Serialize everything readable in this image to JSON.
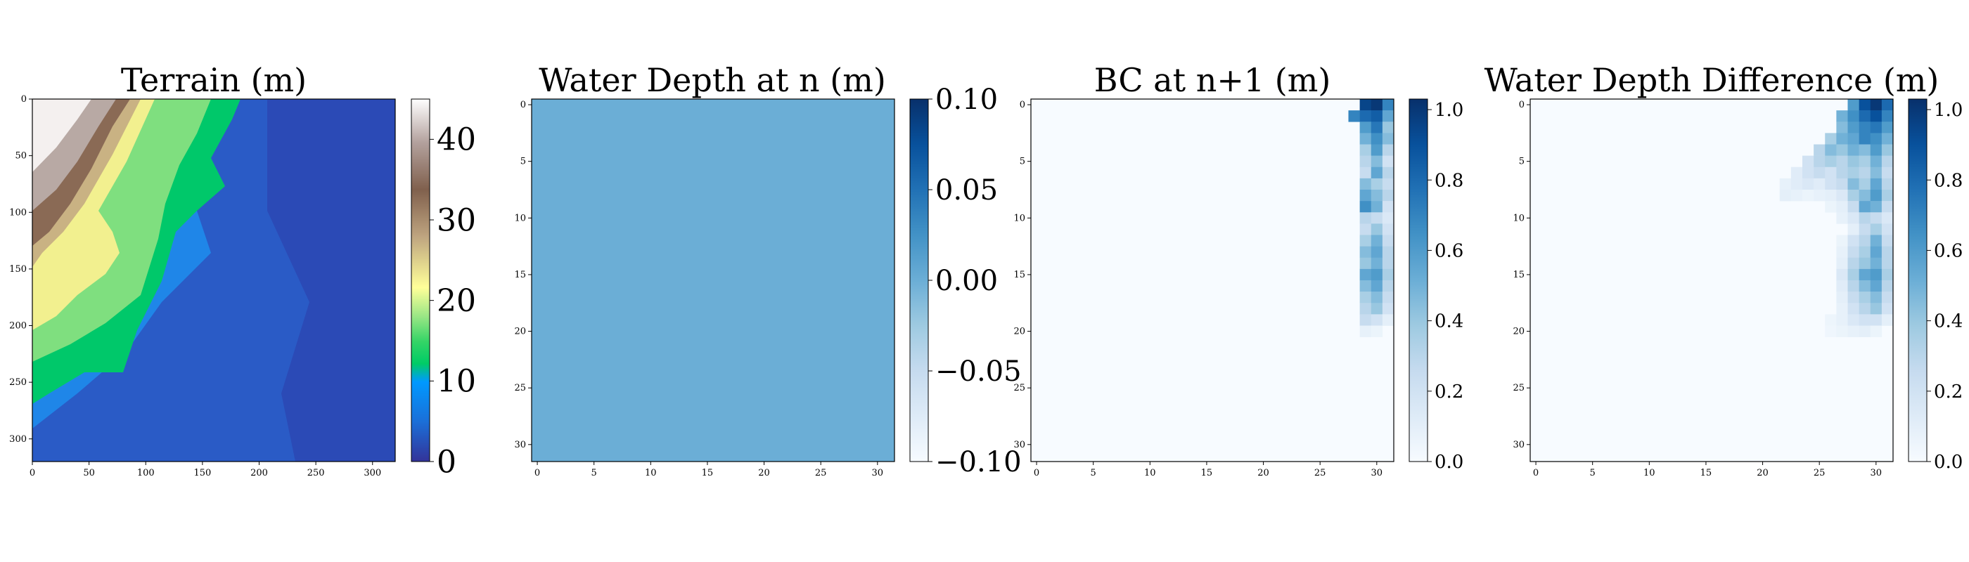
{
  "chart_data": [
    {
      "type": "heatmap",
      "title": "Terrain (m)",
      "colormap": "terrain",
      "grid": "off",
      "xlim": [
        0,
        320
      ],
      "ylim": [
        320,
        0
      ],
      "x_ticks": [
        "0",
        "50",
        "100",
        "150",
        "200",
        "250",
        "300"
      ],
      "y_ticks": [
        "0",
        "50",
        "100",
        "150",
        "200",
        "250",
        "300"
      ],
      "colorbar_ticks": [
        "0",
        "10",
        "20",
        "30",
        "40"
      ],
      "colorbar_range": [
        0,
        45
      ],
      "description_values": {
        "ridge_peak_value": 45,
        "low_plain_value": 2
      }
    },
    {
      "type": "heatmap",
      "title": "Water Depth at n (m)",
      "colormap": "Blues",
      "grid": "off",
      "xlim": [
        0,
        31
      ],
      "ylim": [
        31,
        0
      ],
      "x_ticks": [
        "0",
        "5",
        "10",
        "15",
        "20",
        "25",
        "30"
      ],
      "y_ticks": [
        "0",
        "5",
        "10",
        "15",
        "20",
        "25",
        "30"
      ],
      "colorbar_ticks": [
        "−0.10",
        "−0.05",
        "0.00",
        "0.05",
        "0.10"
      ],
      "colorbar_range": [
        -0.1,
        0.1
      ],
      "uniform_value": 0.0
    },
    {
      "type": "heatmap",
      "title": "BC at n+1 (m)",
      "colormap": "Blues",
      "grid": "off",
      "xlim": [
        0,
        31
      ],
      "ylim": [
        31,
        0
      ],
      "x_ticks": [
        "0",
        "5",
        "10",
        "15",
        "20",
        "25",
        "30"
      ],
      "y_ticks": [
        "0",
        "5",
        "10",
        "15",
        "20",
        "25",
        "30"
      ],
      "colorbar_ticks": [
        "0.0",
        "0.2",
        "0.4",
        "0.6",
        "0.8",
        "1.0"
      ],
      "colorbar_range": [
        0,
        1.03
      ],
      "nonzero_cells": [
        [
          0,
          29,
          0.95
        ],
        [
          0,
          30,
          1.0
        ],
        [
          0,
          31,
          0.7
        ],
        [
          1,
          28,
          0.7
        ],
        [
          1,
          29,
          0.8
        ],
        [
          1,
          30,
          0.85
        ],
        [
          1,
          31,
          0.55
        ],
        [
          2,
          29,
          0.6
        ],
        [
          2,
          30,
          0.75
        ],
        [
          2,
          31,
          0.4
        ],
        [
          3,
          29,
          0.5
        ],
        [
          3,
          30,
          0.65
        ],
        [
          3,
          31,
          0.45
        ],
        [
          4,
          29,
          0.35
        ],
        [
          4,
          30,
          0.6
        ],
        [
          4,
          31,
          0.3
        ],
        [
          5,
          29,
          0.3
        ],
        [
          5,
          30,
          0.45
        ],
        [
          5,
          31,
          0.2
        ],
        [
          6,
          29,
          0.25
        ],
        [
          6,
          30,
          0.55
        ],
        [
          6,
          31,
          0.3
        ],
        [
          7,
          29,
          0.45
        ],
        [
          7,
          30,
          0.35
        ],
        [
          7,
          31,
          0.25
        ],
        [
          8,
          29,
          0.55
        ],
        [
          8,
          30,
          0.45
        ],
        [
          8,
          31,
          0.3
        ],
        [
          9,
          29,
          0.65
        ],
        [
          9,
          30,
          0.5
        ],
        [
          9,
          31,
          0.2
        ],
        [
          10,
          29,
          0.3
        ],
        [
          10,
          30,
          0.25
        ],
        [
          10,
          31,
          0.15
        ],
        [
          11,
          29,
          0.25
        ],
        [
          11,
          30,
          0.4
        ],
        [
          11,
          31,
          0.2
        ],
        [
          12,
          29,
          0.35
        ],
        [
          12,
          30,
          0.5
        ],
        [
          12,
          31,
          0.25
        ],
        [
          13,
          29,
          0.45
        ],
        [
          13,
          30,
          0.55
        ],
        [
          13,
          31,
          0.3
        ],
        [
          14,
          29,
          0.4
        ],
        [
          14,
          30,
          0.5
        ],
        [
          14,
          31,
          0.3
        ],
        [
          15,
          29,
          0.55
        ],
        [
          15,
          30,
          0.6
        ],
        [
          15,
          31,
          0.35
        ],
        [
          16,
          29,
          0.45
        ],
        [
          16,
          30,
          0.55
        ],
        [
          16,
          31,
          0.3
        ],
        [
          17,
          29,
          0.35
        ],
        [
          17,
          30,
          0.45
        ],
        [
          17,
          31,
          0.25
        ],
        [
          18,
          29,
          0.3
        ],
        [
          18,
          30,
          0.4
        ],
        [
          18,
          31,
          0.2
        ],
        [
          19,
          29,
          0.25
        ],
        [
          19,
          30,
          0.2
        ],
        [
          19,
          31,
          0.1
        ],
        [
          20,
          29,
          0.08
        ],
        [
          20,
          30,
          0.06
        ]
      ]
    },
    {
      "type": "heatmap",
      "title": "Water Depth Difference (m)",
      "colormap": "Blues",
      "grid": "off",
      "xlim": [
        0,
        31
      ],
      "ylim": [
        31,
        0
      ],
      "x_ticks": [
        "0",
        "5",
        "10",
        "15",
        "20",
        "25",
        "30"
      ],
      "y_ticks": [
        "0",
        "5",
        "10",
        "15",
        "20",
        "25",
        "30"
      ],
      "colorbar_ticks": [
        "0.0",
        "0.2",
        "0.4",
        "0.6",
        "0.8",
        "1.0"
      ],
      "colorbar_range": [
        0,
        1.03
      ],
      "nonzero_cells": [
        [
          0,
          28,
          0.6
        ],
        [
          0,
          29,
          0.9
        ],
        [
          0,
          30,
          1.0
        ],
        [
          0,
          31,
          0.8
        ],
        [
          1,
          27,
          0.5
        ],
        [
          1,
          28,
          0.65
        ],
        [
          1,
          29,
          0.8
        ],
        [
          1,
          30,
          0.9
        ],
        [
          1,
          31,
          0.7
        ],
        [
          2,
          27,
          0.45
        ],
        [
          2,
          28,
          0.6
        ],
        [
          2,
          29,
          0.7
        ],
        [
          2,
          30,
          0.75
        ],
        [
          2,
          31,
          0.6
        ],
        [
          3,
          26,
          0.35
        ],
        [
          3,
          27,
          0.5
        ],
        [
          3,
          28,
          0.55
        ],
        [
          3,
          29,
          0.7
        ],
        [
          3,
          30,
          0.65
        ],
        [
          3,
          31,
          0.5
        ],
        [
          4,
          25,
          0.3
        ],
        [
          4,
          26,
          0.45
        ],
        [
          4,
          27,
          0.4
        ],
        [
          4,
          28,
          0.5
        ],
        [
          4,
          29,
          0.45
        ],
        [
          4,
          30,
          0.6
        ],
        [
          4,
          31,
          0.4
        ],
        [
          5,
          24,
          0.2
        ],
        [
          5,
          25,
          0.3
        ],
        [
          5,
          26,
          0.35
        ],
        [
          5,
          27,
          0.3
        ],
        [
          5,
          28,
          0.4
        ],
        [
          5,
          29,
          0.35
        ],
        [
          5,
          30,
          0.5
        ],
        [
          5,
          31,
          0.3
        ],
        [
          6,
          23,
          0.12
        ],
        [
          6,
          24,
          0.2
        ],
        [
          6,
          25,
          0.25
        ],
        [
          6,
          26,
          0.2
        ],
        [
          6,
          27,
          0.3
        ],
        [
          6,
          28,
          0.35
        ],
        [
          6,
          29,
          0.3
        ],
        [
          6,
          30,
          0.45
        ],
        [
          6,
          31,
          0.25
        ],
        [
          7,
          22,
          0.08
        ],
        [
          7,
          23,
          0.12
        ],
        [
          7,
          24,
          0.15
        ],
        [
          7,
          25,
          0.12
        ],
        [
          7,
          26,
          0.2
        ],
        [
          7,
          27,
          0.25
        ],
        [
          7,
          28,
          0.45
        ],
        [
          7,
          29,
          0.35
        ],
        [
          7,
          30,
          0.55
        ],
        [
          7,
          31,
          0.3
        ],
        [
          8,
          22,
          0.1
        ],
        [
          8,
          23,
          0.08
        ],
        [
          8,
          24,
          0.06
        ],
        [
          8,
          25,
          0.08
        ],
        [
          8,
          26,
          0.1
        ],
        [
          8,
          27,
          0.15
        ],
        [
          8,
          28,
          0.35
        ],
        [
          8,
          29,
          0.45
        ],
        [
          8,
          30,
          0.6
        ],
        [
          8,
          31,
          0.35
        ],
        [
          9,
          26,
          0.06
        ],
        [
          9,
          27,
          0.1
        ],
        [
          9,
          28,
          0.25
        ],
        [
          9,
          29,
          0.55
        ],
        [
          9,
          30,
          0.5
        ],
        [
          9,
          31,
          0.25
        ],
        [
          10,
          27,
          0.08
        ],
        [
          10,
          28,
          0.15
        ],
        [
          10,
          29,
          0.3
        ],
        [
          10,
          30,
          0.25
        ],
        [
          10,
          31,
          0.15
        ],
        [
          11,
          28,
          0.1
        ],
        [
          11,
          29,
          0.25
        ],
        [
          11,
          30,
          0.35
        ],
        [
          11,
          31,
          0.2
        ],
        [
          12,
          27,
          0.06
        ],
        [
          12,
          28,
          0.2
        ],
        [
          12,
          29,
          0.3
        ],
        [
          12,
          30,
          0.5
        ],
        [
          12,
          31,
          0.25
        ],
        [
          13,
          27,
          0.08
        ],
        [
          13,
          28,
          0.25
        ],
        [
          13,
          29,
          0.35
        ],
        [
          13,
          30,
          0.55
        ],
        [
          13,
          31,
          0.3
        ],
        [
          14,
          27,
          0.1
        ],
        [
          14,
          28,
          0.3
        ],
        [
          14,
          29,
          0.4
        ],
        [
          14,
          30,
          0.5
        ],
        [
          14,
          31,
          0.3
        ],
        [
          15,
          27,
          0.15
        ],
        [
          15,
          28,
          0.35
        ],
        [
          15,
          29,
          0.55
        ],
        [
          15,
          30,
          0.6
        ],
        [
          15,
          31,
          0.35
        ],
        [
          16,
          27,
          0.12
        ],
        [
          16,
          28,
          0.3
        ],
        [
          16,
          29,
          0.45
        ],
        [
          16,
          30,
          0.55
        ],
        [
          16,
          31,
          0.3
        ],
        [
          17,
          27,
          0.1
        ],
        [
          17,
          28,
          0.25
        ],
        [
          17,
          29,
          0.35
        ],
        [
          17,
          30,
          0.45
        ],
        [
          17,
          31,
          0.25
        ],
        [
          18,
          27,
          0.08
        ],
        [
          18,
          28,
          0.2
        ],
        [
          18,
          29,
          0.3
        ],
        [
          18,
          30,
          0.4
        ],
        [
          18,
          31,
          0.2
        ],
        [
          19,
          26,
          0.05
        ],
        [
          19,
          27,
          0.08
        ],
        [
          19,
          28,
          0.15
        ],
        [
          19,
          29,
          0.2
        ],
        [
          19,
          30,
          0.2
        ],
        [
          19,
          31,
          0.1
        ],
        [
          20,
          26,
          0.04
        ],
        [
          20,
          27,
          0.06
        ],
        [
          20,
          28,
          0.08
        ],
        [
          20,
          29,
          0.1
        ],
        [
          20,
          30,
          0.06
        ]
      ]
    }
  ]
}
